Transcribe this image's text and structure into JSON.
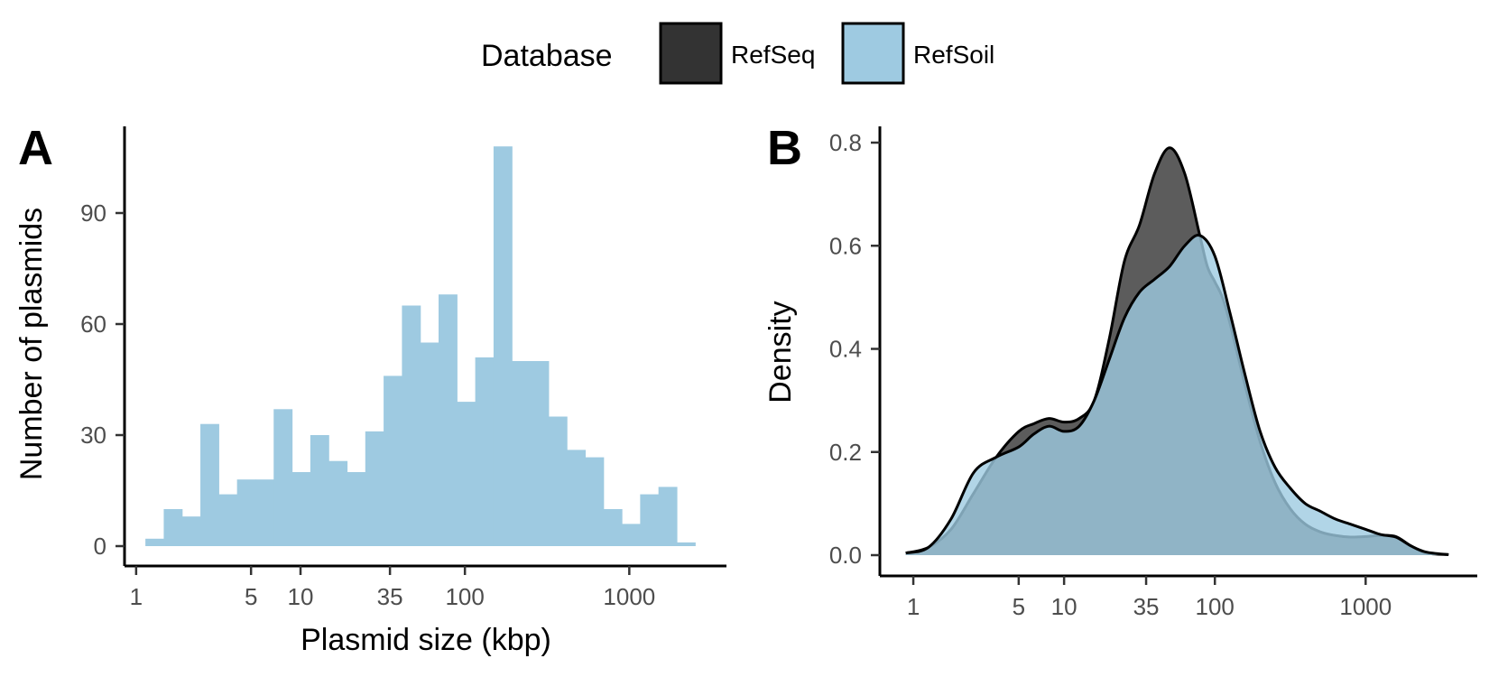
{
  "legend": {
    "title": "Database",
    "entries": [
      {
        "label": "RefSeq",
        "color": "#333333"
      },
      {
        "label": "RefSoil",
        "color": "#9ecae1"
      }
    ]
  },
  "chart_data": [
    {
      "panel": "A",
      "type": "bar",
      "xlabel": "Plasmid size (kbp)",
      "ylabel": "Number of plasmids",
      "x_scale": "log10",
      "x_ticks": [
        1,
        5,
        10,
        35,
        100,
        1000
      ],
      "x_tick_labels": [
        "1",
        "5",
        "10",
        "35",
        "100",
        "1000"
      ],
      "y_ticks": [
        0,
        30,
        60,
        90
      ],
      "y_tick_labels": [
        "0",
        "30",
        "60",
        "90"
      ],
      "ylim": [
        0,
        113
      ],
      "xlim_kbp": [
        0.85,
        3900
      ],
      "bar_color": "#9ecae1",
      "bin_log10_range": [
        0.0564,
        3.4004
      ],
      "values": [
        2,
        10,
        8,
        33,
        14,
        18,
        18,
        37,
        20,
        30,
        23,
        20,
        31,
        46,
        65,
        55,
        68,
        39,
        51,
        108,
        50,
        50,
        35,
        26,
        24,
        10,
        6,
        14,
        16,
        1
      ]
    },
    {
      "panel": "B",
      "type": "area",
      "xlabel": "",
      "ylabel": "Density",
      "x_scale": "log10",
      "x_ticks": [
        1,
        5,
        10,
        35,
        100,
        1000
      ],
      "x_tick_labels": [
        "1",
        "5",
        "10",
        "35",
        "100",
        "1000"
      ],
      "y_ticks": [
        0.0,
        0.2,
        0.4,
        0.6,
        0.8
      ],
      "y_tick_labels": [
        "0.0",
        "0.2",
        "0.4",
        "0.6",
        "0.8"
      ],
      "ylim": [
        -0.03,
        0.83
      ],
      "xlim_kbp": [
        0.6,
        5500
      ],
      "series": [
        {
          "name": "RefSeq",
          "fill": "#333333",
          "opacity": 0.8,
          "x_log10": [
            -0.05,
            0.1,
            0.25,
            0.4,
            0.55,
            0.7,
            0.8,
            0.9,
            1.0,
            1.1,
            1.2,
            1.3,
            1.4,
            1.5,
            1.6,
            1.7,
            1.8,
            1.9,
            1.95,
            2.0,
            2.05,
            2.1,
            2.2,
            2.3,
            2.4,
            2.5,
            2.6,
            2.7,
            2.8,
            2.9,
            3.0,
            3.1,
            3.2,
            3.3,
            3.4,
            3.55
          ],
          "y": [
            0.004,
            0.015,
            0.05,
            0.12,
            0.19,
            0.24,
            0.255,
            0.265,
            0.258,
            0.265,
            0.3,
            0.42,
            0.57,
            0.64,
            0.74,
            0.79,
            0.74,
            0.62,
            0.56,
            0.53,
            0.5,
            0.45,
            0.33,
            0.22,
            0.14,
            0.09,
            0.06,
            0.045,
            0.038,
            0.035,
            0.036,
            0.038,
            0.036,
            0.018,
            0.004,
            0.001
          ]
        },
        {
          "name": "RefSoil",
          "fill": "#9ecae1",
          "opacity": 0.8,
          "x_log10": [
            -0.05,
            0.1,
            0.25,
            0.4,
            0.55,
            0.7,
            0.8,
            0.9,
            1.0,
            1.1,
            1.2,
            1.3,
            1.4,
            1.5,
            1.6,
            1.7,
            1.8,
            1.9,
            2.0,
            2.1,
            2.2,
            2.3,
            2.4,
            2.5,
            2.6,
            2.7,
            2.8,
            2.9,
            3.0,
            3.1,
            3.2,
            3.3,
            3.4,
            3.55
          ],
          "y": [
            0.004,
            0.015,
            0.07,
            0.16,
            0.19,
            0.21,
            0.235,
            0.25,
            0.24,
            0.25,
            0.3,
            0.38,
            0.46,
            0.51,
            0.535,
            0.56,
            0.6,
            0.62,
            0.58,
            0.47,
            0.35,
            0.24,
            0.17,
            0.13,
            0.1,
            0.085,
            0.07,
            0.06,
            0.05,
            0.04,
            0.035,
            0.018,
            0.006,
            0.001
          ]
        }
      ]
    }
  ]
}
